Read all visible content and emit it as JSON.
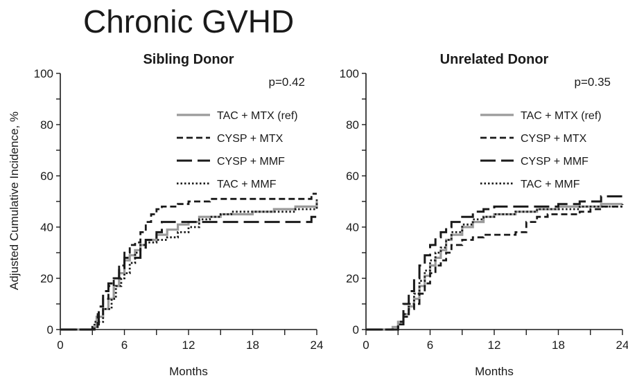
{
  "title": "Chronic GVHD",
  "ylabel": "Adjusted Cumulative Incidence, %",
  "chart_data": [
    {
      "type": "line",
      "title": "Sibling Donor",
      "annotation": "p=0.42",
      "xlabel": "Months",
      "ylabel": "Adjusted Cumulative Incidence, %",
      "xlim": [
        0,
        24
      ],
      "ylim": [
        0,
        100
      ],
      "xticks": [
        0,
        6,
        12,
        18,
        24
      ],
      "yticks": [
        0,
        20,
        40,
        60,
        80,
        100
      ],
      "legend_position": "right",
      "series": [
        {
          "name": "TAC + MTX (ref)",
          "color": "#9a9a9a",
          "style": "solid",
          "x": [
            0,
            2,
            3,
            3.4,
            4,
            4.5,
            5,
            5.5,
            6,
            6.5,
            7,
            7.5,
            8,
            9,
            10,
            11,
            12,
            13,
            15,
            18,
            20,
            22,
            24
          ],
          "y": [
            0,
            0,
            1,
            5,
            8,
            12,
            17,
            22,
            27,
            29,
            31,
            33,
            35,
            37,
            39,
            41,
            42,
            44,
            45,
            46,
            47,
            48,
            50
          ]
        },
        {
          "name": "CYSP + MTX",
          "color": "#1a1a1a",
          "style": "dash",
          "x": [
            0,
            2,
            3,
            3.5,
            4,
            4.5,
            5,
            5.5,
            6,
            6.5,
            7,
            7.5,
            8,
            8.5,
            9,
            9.5,
            10,
            11,
            12,
            14,
            18,
            22,
            23.5,
            24
          ],
          "y": [
            0,
            0,
            1,
            6,
            12,
            17,
            20,
            25,
            30,
            33,
            34,
            38,
            42,
            45,
            47,
            48,
            48,
            49,
            50,
            51,
            51,
            51,
            53,
            53
          ]
        },
        {
          "name": "CYSP + MMF",
          "color": "#1a1a1a",
          "style": "longdash",
          "x": [
            0,
            2.5,
            3.2,
            3.6,
            4,
            4.5,
            5,
            5.5,
            6,
            7,
            7.5,
            8,
            9,
            9.5,
            10,
            12,
            16,
            20,
            23.5,
            24
          ],
          "y": [
            0,
            0,
            2,
            9,
            15,
            18,
            20,
            24,
            28,
            28,
            32,
            35,
            38,
            42,
            42,
            42,
            42,
            42,
            44,
            44
          ]
        },
        {
          "name": "TAC + MMF",
          "color": "#1a1a1a",
          "style": "dot",
          "x": [
            0,
            2.5,
            3.2,
            4,
            4.8,
            5.2,
            5.7,
            6,
            6.5,
            7,
            7.5,
            8,
            9,
            10,
            11,
            12,
            13,
            14,
            15,
            16,
            18,
            20,
            22,
            24
          ],
          "y": [
            0,
            0,
            3,
            8,
            12,
            17,
            20,
            22,
            26,
            30,
            33,
            34,
            35,
            36,
            38,
            40,
            43,
            44,
            45,
            46,
            46,
            46,
            47,
            51
          ]
        }
      ]
    },
    {
      "type": "line",
      "title": "Unrelated Donor",
      "annotation": "p=0.35",
      "xlabel": "Months",
      "xlim": [
        0,
        24
      ],
      "ylim": [
        0,
        100
      ],
      "xticks": [
        0,
        6,
        12,
        18,
        24
      ],
      "yticks": [
        0,
        20,
        40,
        60,
        80,
        100
      ],
      "legend_position": "right",
      "series": [
        {
          "name": "TAC + MTX (ref)",
          "color": "#9a9a9a",
          "style": "solid",
          "x": [
            0,
            2,
            2.5,
            3,
            3.5,
            4,
            4.5,
            5,
            5.5,
            6,
            6.5,
            7,
            7.5,
            8,
            9,
            10,
            11,
            12,
            14,
            16,
            18,
            20,
            22,
            24
          ],
          "y": [
            0,
            0,
            1,
            3,
            6,
            9,
            12,
            17,
            21,
            25,
            28,
            31,
            35,
            37,
            40,
            42,
            44,
            45,
            46,
            47,
            48,
            48,
            49,
            49
          ]
        },
        {
          "name": "CYSP + MTX",
          "color": "#1a1a1a",
          "style": "dash",
          "x": [
            0,
            2.5,
            3,
            3.5,
            4,
            4.5,
            5,
            5.5,
            6,
            6.5,
            7,
            7.5,
            8,
            9,
            10,
            11,
            12,
            13,
            14,
            15,
            16,
            17,
            18,
            19,
            20,
            21,
            22,
            24
          ],
          "y": [
            0,
            0,
            2,
            5,
            8,
            10,
            14,
            18,
            22,
            25,
            27,
            30,
            33,
            35,
            36,
            37,
            37,
            37,
            38,
            42,
            44,
            45,
            45,
            45,
            46,
            47,
            48,
            48
          ]
        },
        {
          "name": "CYSP + MMF",
          "color": "#1a1a1a",
          "style": "longdash",
          "x": [
            0,
            2.5,
            3,
            3.5,
            4,
            4.5,
            5,
            5.5,
            6,
            6.5,
            7,
            7.5,
            8,
            9,
            10,
            11,
            12,
            14,
            16,
            18,
            20,
            22,
            24
          ],
          "y": [
            0,
            0,
            3,
            10,
            15,
            20,
            25,
            29,
            33,
            36,
            38,
            40,
            42,
            44,
            46,
            47,
            48,
            48,
            48,
            49,
            50,
            52,
            52
          ]
        },
        {
          "name": "TAC + MMF",
          "color": "#1a1a1a",
          "style": "dot",
          "x": [
            0,
            2.5,
            3,
            3.5,
            4,
            4.5,
            5,
            5.5,
            6,
            6.5,
            7,
            7.5,
            8,
            9,
            10,
            11,
            12,
            14,
            16,
            18,
            20,
            22,
            24
          ],
          "y": [
            0,
            0,
            2,
            6,
            10,
            14,
            19,
            23,
            27,
            30,
            32,
            35,
            38,
            41,
            43,
            44,
            45,
            46,
            47,
            47,
            48,
            48,
            49
          ]
        }
      ]
    }
  ]
}
